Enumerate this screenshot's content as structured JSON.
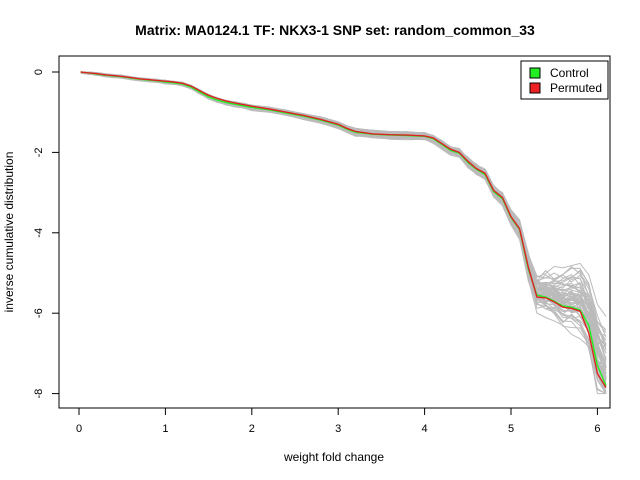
{
  "chart_data": {
    "type": "line",
    "title": "Matrix: MA0124.1 TF: NKX3-1 SNP set: random_common_33",
    "xlabel": "weight fold change",
    "ylabel": "inverse cumulative distribution",
    "xlim": [
      0,
      6.1
    ],
    "ylim": [
      -8,
      0
    ],
    "x_ticks": [
      0,
      1,
      2,
      3,
      4,
      5,
      6
    ],
    "y_ticks": [
      0,
      -2,
      -4,
      -6,
      -8
    ],
    "legend": {
      "position": "top-right",
      "entries": [
        {
          "label": "Control",
          "color": "#22ee22"
        },
        {
          "label": "Permuted",
          "color": "#ee2222"
        }
      ]
    },
    "background_color": "#bbbbbb",
    "background_line_count": 60,
    "series": [
      {
        "name": "Control",
        "color": "#22ee22",
        "x": [
          0.02,
          0.1,
          0.2,
          0.3,
          0.4,
          0.5,
          0.6,
          0.7,
          0.8,
          0.9,
          1.0,
          1.1,
          1.2,
          1.3,
          1.4,
          1.5,
          1.6,
          1.7,
          1.8,
          1.9,
          2.0,
          2.2,
          2.4,
          2.6,
          2.8,
          3.0,
          3.1,
          3.2,
          3.4,
          3.6,
          3.8,
          4.0,
          4.1,
          4.2,
          4.3,
          4.4,
          4.5,
          4.6,
          4.7,
          4.8,
          4.9,
          5.0,
          5.1,
          5.2,
          5.3,
          5.4,
          5.5,
          5.6,
          5.7,
          5.8,
          5.9,
          6.0,
          6.1
        ],
        "y": [
          0,
          -0.02,
          -0.05,
          -0.08,
          -0.1,
          -0.12,
          -0.15,
          -0.18,
          -0.2,
          -0.22,
          -0.25,
          -0.27,
          -0.3,
          -0.38,
          -0.5,
          -0.62,
          -0.7,
          -0.76,
          -0.8,
          -0.84,
          -0.88,
          -0.94,
          -1.02,
          -1.1,
          -1.2,
          -1.32,
          -1.42,
          -1.5,
          -1.55,
          -1.57,
          -1.58,
          -1.6,
          -1.66,
          -1.8,
          -1.95,
          -2.02,
          -2.25,
          -2.42,
          -2.55,
          -2.98,
          -3.15,
          -3.62,
          -3.92,
          -4.9,
          -5.55,
          -5.6,
          -5.7,
          -5.82,
          -5.85,
          -5.92,
          -6.3,
          -7.3,
          -7.8
        ]
      },
      {
        "name": "Permuted",
        "color": "#dd2222",
        "x": [
          0.02,
          0.1,
          0.2,
          0.3,
          0.4,
          0.5,
          0.6,
          0.7,
          0.8,
          0.9,
          1.0,
          1.1,
          1.2,
          1.3,
          1.4,
          1.5,
          1.6,
          1.7,
          1.8,
          1.9,
          2.0,
          2.2,
          2.4,
          2.6,
          2.8,
          3.0,
          3.1,
          3.2,
          3.4,
          3.6,
          3.8,
          4.0,
          4.1,
          4.2,
          4.3,
          4.4,
          4.5,
          4.6,
          4.7,
          4.8,
          4.9,
          5.0,
          5.1,
          5.2,
          5.3,
          5.4,
          5.5,
          5.6,
          5.7,
          5.8,
          5.9,
          6.0,
          6.1
        ],
        "y": [
          0,
          -0.02,
          -0.04,
          -0.07,
          -0.09,
          -0.11,
          -0.14,
          -0.17,
          -0.19,
          -0.21,
          -0.23,
          -0.25,
          -0.28,
          -0.35,
          -0.47,
          -0.58,
          -0.66,
          -0.72,
          -0.77,
          -0.81,
          -0.85,
          -0.92,
          -1.0,
          -1.08,
          -1.18,
          -1.3,
          -1.4,
          -1.48,
          -1.54,
          -1.56,
          -1.57,
          -1.59,
          -1.64,
          -1.78,
          -1.92,
          -2.0,
          -2.22,
          -2.4,
          -2.52,
          -2.95,
          -3.12,
          -3.6,
          -3.9,
          -4.85,
          -5.6,
          -5.62,
          -5.72,
          -5.85,
          -5.88,
          -5.95,
          -6.5,
          -7.5,
          -7.85
        ]
      }
    ]
  }
}
